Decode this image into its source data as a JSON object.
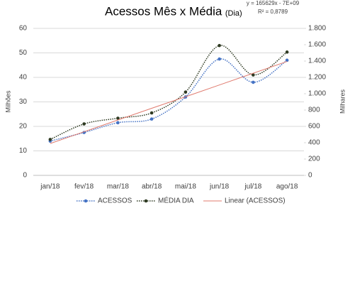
{
  "chart_data": {
    "type": "line",
    "title": "Acessos Mês x Média",
    "title_note": "(Dia)",
    "annotations": [
      "y = 165629x - 7E+09",
      "R² = 0,8789"
    ],
    "ylabel": "Milhões",
    "y2label": "Milhares",
    "categories": [
      "jan/18",
      "fev/18",
      "mar/18",
      "abr/18",
      "mai/18",
      "jun/18",
      "jul/18",
      "ago/18"
    ],
    "ylim": [
      0,
      60
    ],
    "yticks": [
      0,
      10,
      20,
      30,
      40,
      50,
      60
    ],
    "y2lim": [
      0,
      1800
    ],
    "y2ticks": [
      0,
      200,
      400,
      600,
      800,
      {
        "value": 1000,
        "label": "1.000"
      },
      {
        "value": 1200,
        "label": "1.200"
      },
      {
        "value": 1400,
        "label": "1.400"
      },
      {
        "value": 1600,
        "label": "1.600"
      },
      {
        "value": 1800,
        "label": "1.800"
      }
    ],
    "grid": true,
    "legend": "bottom",
    "series": [
      {
        "name": "ACESSOS",
        "color": "#4472c4",
        "style": "dotted",
        "smooth": true,
        "markers": true,
        "values": [
          14,
          17.5,
          21.5,
          23,
          32,
          47.5,
          38,
          47
        ]
      },
      {
        "name": "MÉDIA DIA",
        "color": "#2e3a22",
        "style": "dotted",
        "smooth": true,
        "markers": true,
        "axis": "y2",
        "values": [
          440,
          630,
          700,
          765,
          1020,
          1590,
          1230,
          1510
        ]
      },
      {
        "name": "Linear (ACESSOS)",
        "color": "#e07b6f",
        "style": "solid",
        "smooth": false,
        "markers": false,
        "values": [
          13,
          17.8,
          22.6,
          27.4,
          32.1,
          36.9,
          41.7,
          46.5
        ]
      }
    ]
  }
}
